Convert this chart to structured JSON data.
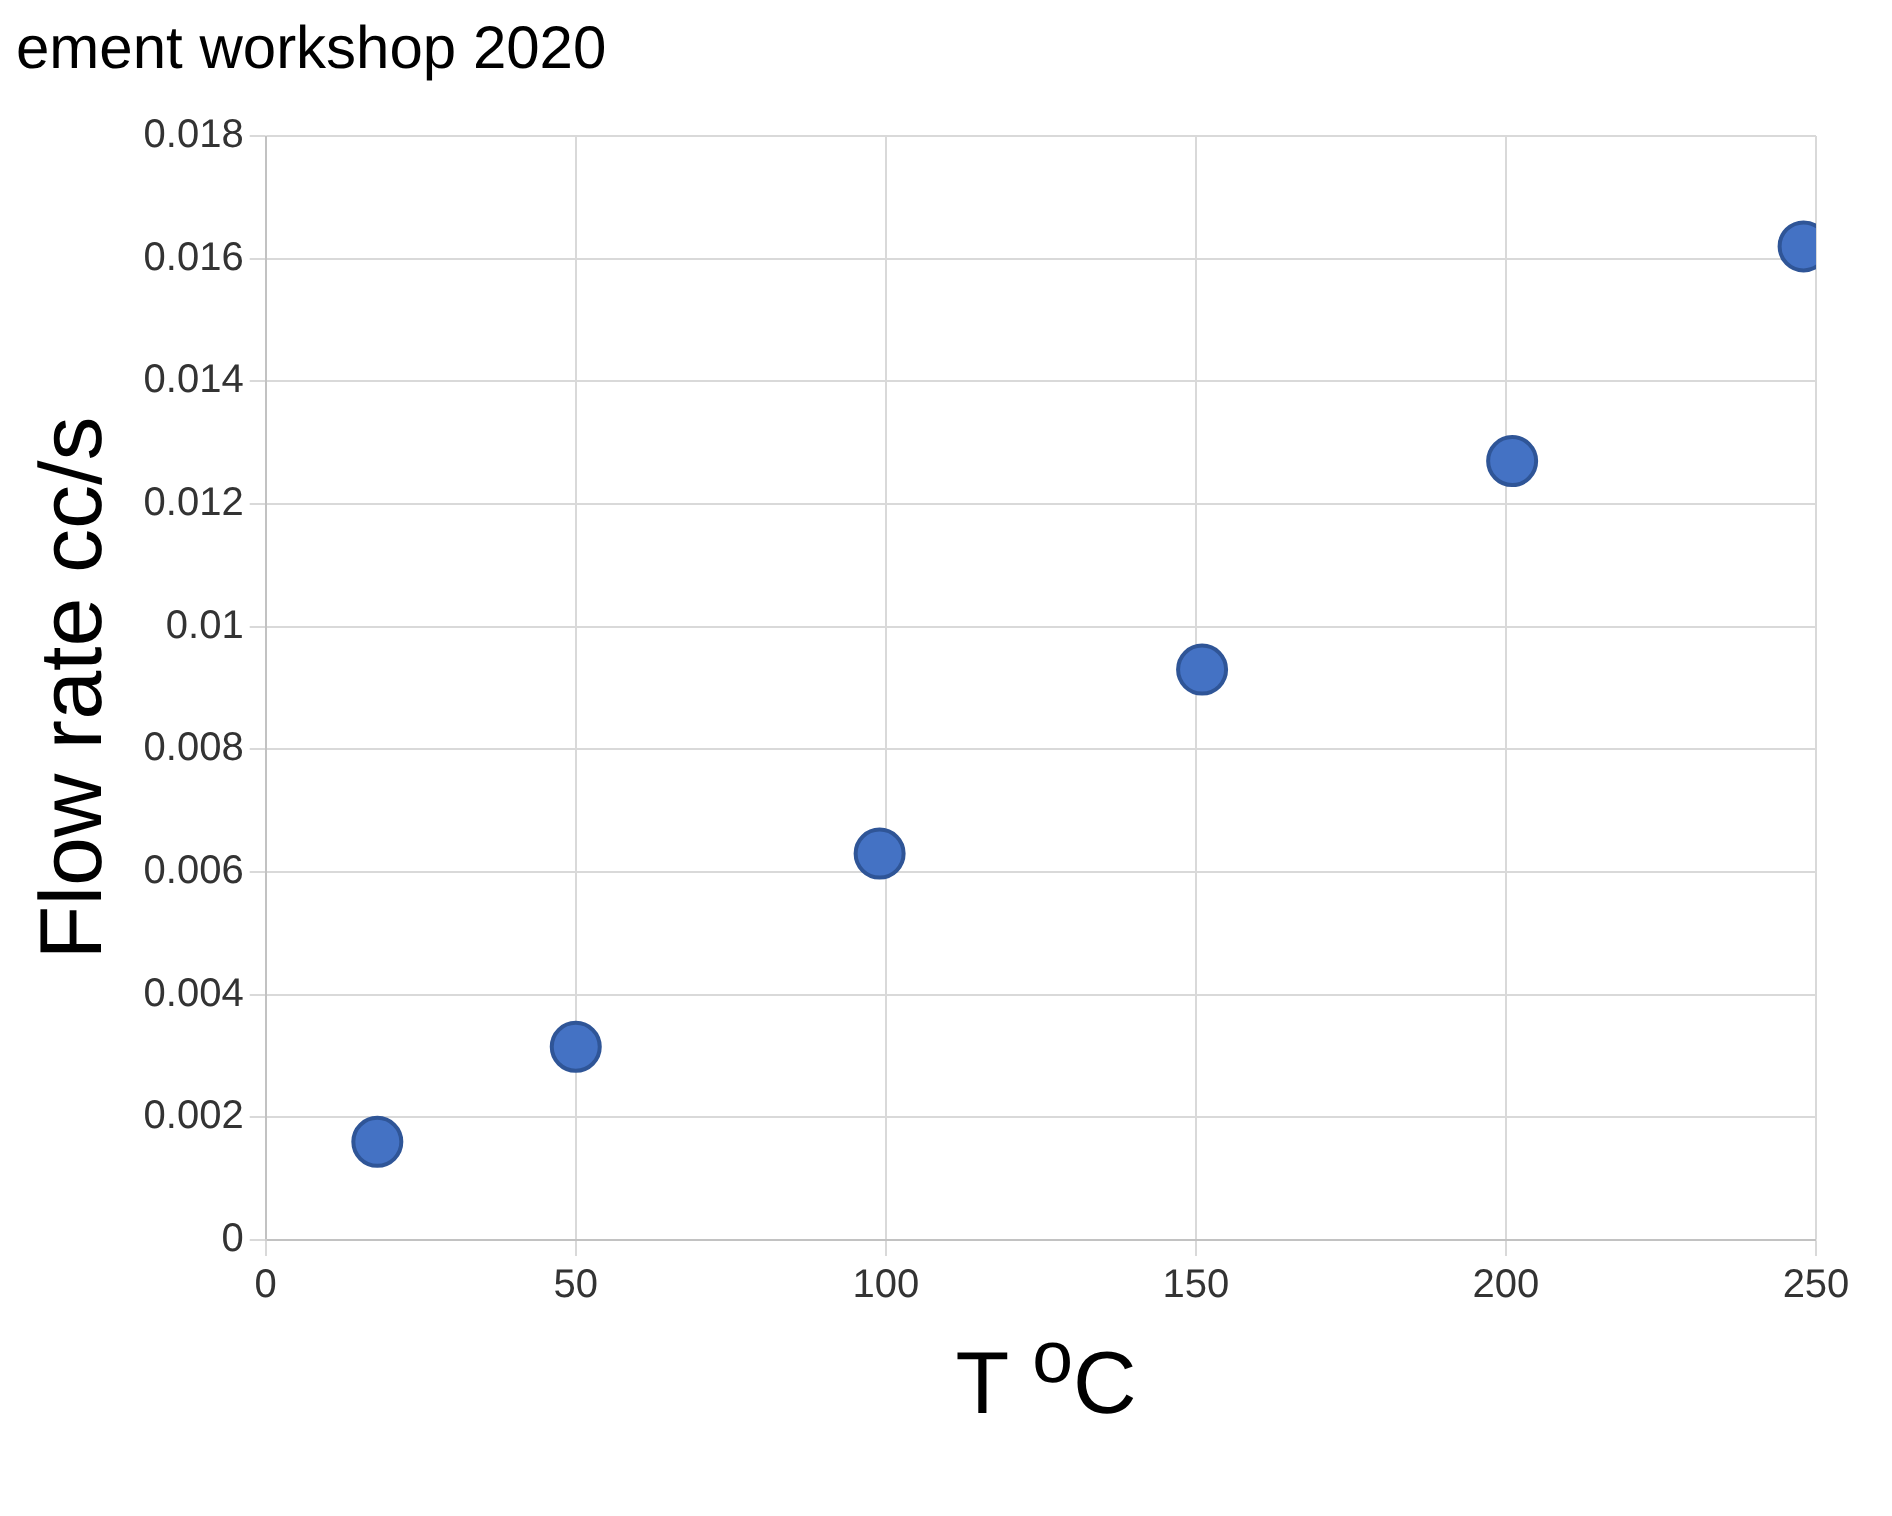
{
  "chart_data": {
    "type": "scatter",
    "xlabel": "T $^{o}$C",
    "ylabel": "Flow rate cc/s",
    "annotations": [
      "ement workshop 2020"
    ],
    "x": [
      18,
      50,
      99,
      151,
      201,
      248
    ],
    "series": [
      {
        "color": "#4472c4",
        "values": [
          0.0016,
          0.00315,
          0.0063,
          0.0093,
          0.0127,
          0.0162
        ]
      }
    ],
    "xlim": [
      0,
      250
    ],
    "xticks": [
      0,
      50,
      100,
      150,
      200,
      250
    ],
    "ylim": [
      0,
      0.018
    ],
    "yticks": [
      0,
      0.002,
      0.004,
      0.006,
      0.008,
      0.01,
      0.012,
      0.014,
      0.016,
      0.018
    ],
    "grid": true,
    "legend": false,
    "marker": "circle"
  }
}
